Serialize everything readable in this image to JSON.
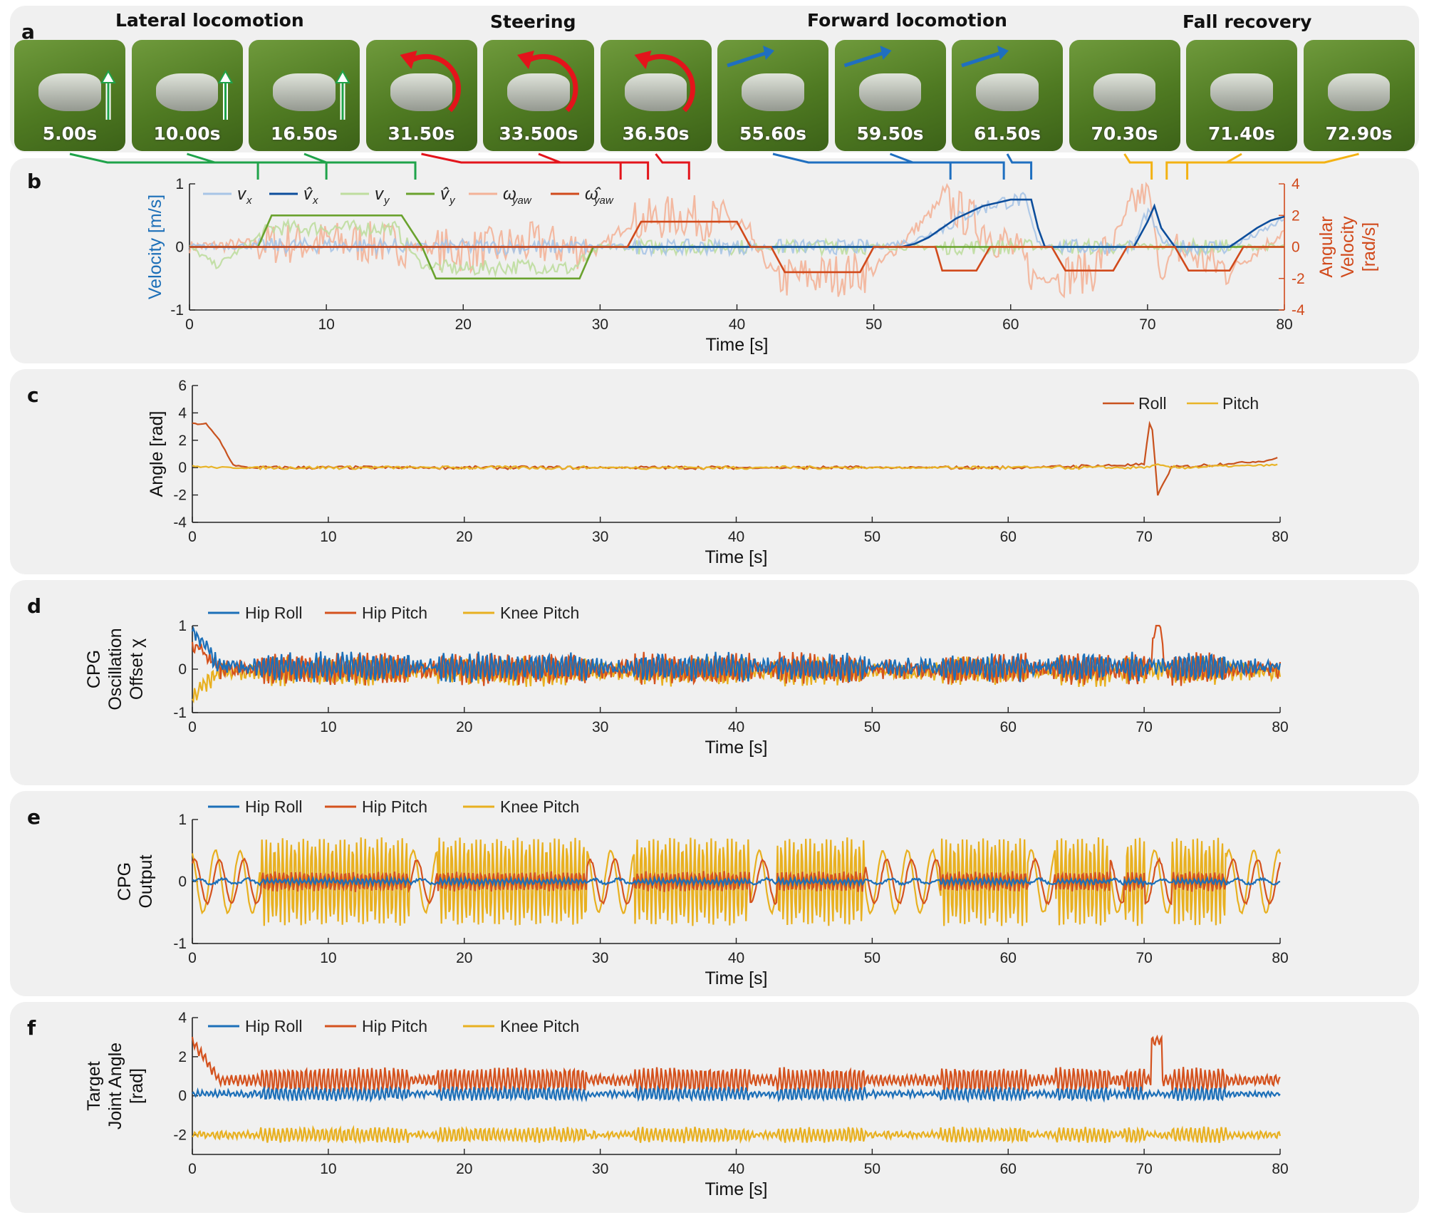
{
  "panel_letters": [
    "a",
    "b",
    "c",
    "d",
    "e",
    "f"
  ],
  "section_titles": [
    "Lateral locomotion",
    "Steering",
    "Forward locomotion",
    "Fall recovery"
  ],
  "snapshots": [
    "5.00s",
    "10.00s",
    "16.50s",
    "31.50s",
    "33.500s",
    "36.50s",
    "55.60s",
    "59.50s",
    "61.50s",
    "70.30s",
    "71.40s",
    "72.90s"
  ],
  "colors": {
    "lateral": "#1fa34a",
    "steering": "#e3141b",
    "forward": "#1f6fc0",
    "recovery": "#f3b213",
    "vx": "#a7c4e6",
    "vx_hat": "#0d4e9c",
    "vy": "#bedd9e",
    "vy_hat": "#6aa22e",
    "wyaw": "#f3b298",
    "wyaw_hat": "#d14a1c",
    "roll": "#c8521e",
    "pitch": "#e8b428",
    "hip_roll": "#1c6fb8",
    "hip_pitch": "#d4521e",
    "knee_pitch": "#e8b020"
  },
  "chart_data": [
    {
      "id": "b",
      "type": "line",
      "xlabel": "Time [s]",
      "ylabel": "Velocity [m/s]",
      "y2label_lines": [
        "Angular",
        "Velocity",
        "[rad/s]"
      ],
      "xlim": [
        0,
        80
      ],
      "ylim": [
        -1,
        1
      ],
      "y2lim": [
        -4,
        4
      ],
      "xticks": [
        "0",
        "10",
        "20",
        "30",
        "40",
        "50",
        "60",
        "70",
        "80"
      ],
      "yticks": [
        "1",
        "0",
        "-1"
      ],
      "y2ticks": [
        "4",
        "2",
        "0",
        "-2",
        "-4"
      ],
      "legend": "top",
      "legend_labels": [
        "v",
        "v̂",
        "v",
        "v̂",
        "ω",
        "ω̂"
      ],
      "legend_subs": [
        "x",
        "x",
        "y",
        "y",
        "yaw",
        "yaw"
      ],
      "series": [
        {
          "name": "vx",
          "x": [
            0,
            5,
            10,
            15,
            20,
            25,
            30,
            32,
            40,
            43,
            50,
            53,
            55,
            57,
            59,
            61,
            62,
            64,
            69,
            70,
            71,
            72,
            76,
            78,
            80
          ],
          "y": [
            0,
            0.02,
            0.02,
            0.02,
            0,
            0,
            0,
            0,
            0,
            0,
            0,
            0.1,
            0.3,
            0.55,
            0.7,
            0.75,
            0.05,
            0,
            0,
            0.6,
            0.1,
            0,
            0,
            0.2,
            0.45
          ]
        },
        {
          "name": "vx_hat",
          "x": [
            0,
            52,
            53,
            54,
            55,
            56,
            57,
            58,
            59,
            60,
            61.5,
            62,
            62.5,
            69,
            70,
            70.5,
            71,
            72,
            76,
            77,
            78,
            79,
            80
          ],
          "y": [
            0,
            0,
            0.05,
            0.15,
            0.3,
            0.45,
            0.55,
            0.65,
            0.7,
            0.75,
            0.75,
            0.3,
            0,
            0,
            0.4,
            0.65,
            0.3,
            0,
            0,
            0.15,
            0.3,
            0.42,
            0.48
          ]
        },
        {
          "name": "vy",
          "x": [
            0,
            2,
            4,
            6,
            10,
            15,
            17,
            20,
            25,
            28,
            30,
            40,
            80
          ],
          "y": [
            0,
            -0.3,
            0,
            0.3,
            0.3,
            0.3,
            -0.3,
            -0.35,
            -0.3,
            -0.35,
            0,
            0,
            0
          ]
        },
        {
          "name": "vy_hat",
          "x": [
            0,
            5,
            6,
            15.5,
            17,
            18,
            28.5,
            29.5,
            30,
            80
          ],
          "y": [
            0,
            0,
            0.5,
            0.5,
            0,
            -0.5,
            -0.5,
            0,
            0,
            0
          ]
        },
        {
          "name": "wyaw",
          "x": [
            0,
            5,
            10,
            15,
            20,
            25,
            30,
            32,
            36,
            40,
            43,
            47,
            50,
            54,
            55,
            60,
            62,
            66,
            70,
            71,
            72,
            76,
            80
          ],
          "y": [
            0,
            0.2,
            0.3,
            0.2,
            -0.3,
            0.2,
            -0.2,
            1.5,
            2,
            1.5,
            -2,
            -1.8,
            -1.5,
            2,
            3,
            0,
            -2,
            -1.5,
            4,
            -2,
            0,
            -1.5,
            1
          ]
        },
        {
          "name": "wyaw_hat",
          "x": [
            0,
            32,
            33,
            40,
            41,
            42.5,
            43.5,
            49,
            50,
            54.5,
            55,
            57.5,
            58.5,
            61,
            62,
            63,
            64,
            67.5,
            68.5,
            71,
            72,
            73,
            76,
            77,
            80
          ],
          "y": [
            0,
            0,
            1.6,
            1.6,
            0,
            0,
            -1.6,
            -1.6,
            0,
            0,
            -1.5,
            -1.5,
            0,
            0,
            0,
            0,
            -1.5,
            -1.5,
            0,
            0,
            0,
            -1.5,
            -1.5,
            0,
            0
          ]
        }
      ]
    },
    {
      "id": "c",
      "type": "line",
      "xlabel": "Time [s]",
      "ylabel": "Angle [rad]",
      "xlim": [
        0,
        80
      ],
      "ylim": [
        -4,
        6
      ],
      "xticks": [
        "0",
        "10",
        "20",
        "30",
        "40",
        "50",
        "60",
        "70",
        "80"
      ],
      "yticks": [
        "6",
        "4",
        "2",
        "0",
        "-2",
        "-4"
      ],
      "legend": "top-right",
      "series": [
        {
          "name": "Roll",
          "x": [
            0,
            1,
            2,
            3,
            4,
            10,
            20,
            30,
            40,
            50,
            60,
            70,
            70.5,
            71,
            72,
            79,
            80
          ],
          "y": [
            3.2,
            3.2,
            2,
            0.2,
            0,
            0,
            0,
            0,
            0,
            0,
            0,
            0.2,
            4,
            -2,
            0,
            0.5,
            0.8
          ]
        },
        {
          "name": "Pitch",
          "x": [
            0,
            2,
            10,
            20,
            30,
            40,
            50,
            60,
            70,
            71,
            72,
            80
          ],
          "y": [
            0.1,
            0,
            0,
            0,
            0,
            0,
            0,
            0,
            0,
            0.2,
            0,
            0.2
          ]
        }
      ]
    },
    {
      "id": "d",
      "type": "line",
      "xlabel": "Time [s]",
      "ylabel_lines": [
        "CPG",
        "Oscillation",
        "Offset χ"
      ],
      "xlim": [
        0,
        80
      ],
      "ylim": [
        -1,
        1
      ],
      "xticks": [
        "0",
        "10",
        "20",
        "30",
        "40",
        "50",
        "60",
        "70",
        "80"
      ],
      "yticks": [
        "1",
        "0",
        "-1"
      ],
      "legend": "top-left",
      "series": [
        {
          "name": "Hip Roll",
          "amplitude": 0.3,
          "mean": 0.05
        },
        {
          "name": "Hip Pitch",
          "amplitude": 0.35,
          "mean": 0.0
        },
        {
          "name": "Knee Pitch",
          "amplitude": 0.3,
          "mean": -0.05
        }
      ]
    },
    {
      "id": "e",
      "type": "line",
      "xlabel": "Time [s]",
      "ylabel_lines": [
        "CPG",
        "Output"
      ],
      "xlim": [
        0,
        80
      ],
      "ylim": [
        -1,
        1
      ],
      "xticks": [
        "0",
        "10",
        "20",
        "30",
        "40",
        "50",
        "60",
        "70",
        "80"
      ],
      "yticks": [
        "1",
        "0",
        "-1"
      ],
      "legend": "top-left",
      "series": [
        {
          "name": "Hip Roll",
          "amplitude": 0.05,
          "mean": 0.0
        },
        {
          "name": "Hip Pitch",
          "amplitude": 0.3,
          "mean": 0.0
        },
        {
          "name": "Knee Pitch",
          "amplitude": 0.65,
          "mean": 0.0
        }
      ]
    },
    {
      "id": "f",
      "type": "line",
      "xlabel": "Time [s]",
      "ylabel_lines": [
        "Target",
        "Joint Angle",
        "[rad]"
      ],
      "xlim": [
        0,
        80
      ],
      "ylim": [
        -3,
        4
      ],
      "xticks": [
        "0",
        "10",
        "20",
        "30",
        "40",
        "50",
        "60",
        "70",
        "80"
      ],
      "yticks": [
        "4",
        "2",
        "0",
        "-2"
      ],
      "legend": "top-left",
      "series": [
        {
          "name": "Hip Roll",
          "amplitude": 0.3,
          "mean": 0.1
        },
        {
          "name": "Hip Pitch",
          "amplitude": 0.6,
          "mean": 0.8
        },
        {
          "name": "Knee Pitch",
          "amplitude": 0.35,
          "mean": -2.0
        }
      ]
    }
  ]
}
